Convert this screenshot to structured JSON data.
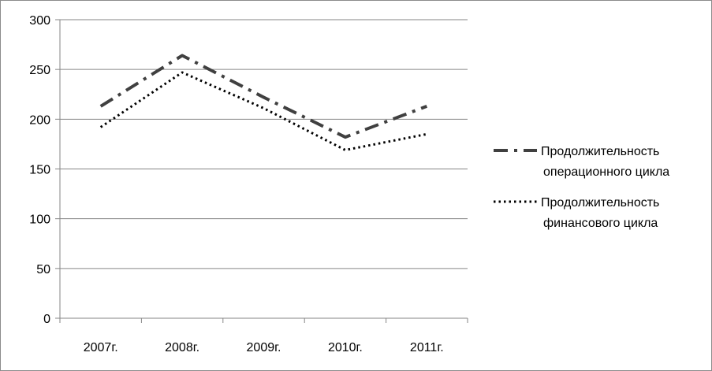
{
  "chart_data": {
    "type": "line",
    "title": "",
    "xlabel": "",
    "ylabel": "",
    "categories": [
      "2007г.",
      "2008г.",
      "2009г.",
      "2010г.",
      "2011г."
    ],
    "ylim": [
      0,
      300
    ],
    "yticks": [
      0,
      50,
      100,
      150,
      200,
      250,
      300
    ],
    "grid": true,
    "legend_position": "right",
    "series": [
      {
        "name": "Продолжительность операционного цикла",
        "name_lines": [
          "Продолжительность",
          "операционного цикла"
        ],
        "values": [
          213,
          264,
          222,
          182,
          213
        ],
        "style": "dash-dot",
        "color": "#404040"
      },
      {
        "name": "Продолжительность финансового цикла",
        "name_lines": [
          "Продолжительность",
          "финансового цикла"
        ],
        "values": [
          192,
          247,
          211,
          169,
          185
        ],
        "style": "dotted",
        "color": "#000000"
      }
    ]
  }
}
